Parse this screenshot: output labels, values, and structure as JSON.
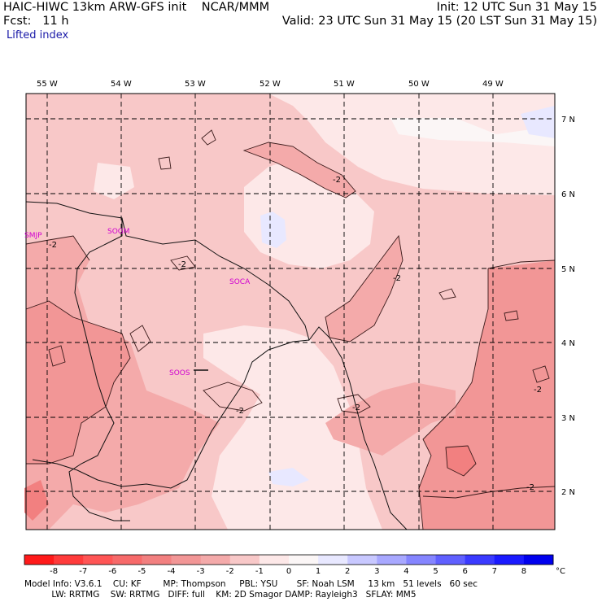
{
  "header": {
    "model": "HAIC-HIWC 13km ARW-GFS init",
    "org": "NCAR/MMM",
    "init": "Init: 12 UTC Sun 31 May 15",
    "fcst_label": "Fcst:",
    "fcst_value": "11 h",
    "valid": "Valid: 23 UTC Sun 31 May 15 (20 LST Sun 31 May 15)",
    "field": "Lifted index"
  },
  "longitudes": [
    "55 W",
    "54 W",
    "53 W",
    "52 W",
    "51 W",
    "50 W",
    "49 W"
  ],
  "latitudes": [
    "7 N",
    "6 N",
    "5 N",
    "4 N",
    "3 N",
    "2 N"
  ],
  "stations": [
    "SMJP",
    "SOGM",
    "SOCA",
    "SOOS"
  ],
  "contour_label": "-2",
  "colorbar": {
    "ticks": [
      "-8",
      "-7",
      "-6",
      "-5",
      "-4",
      "-3",
      "-2",
      "-1",
      "0",
      "1",
      "2",
      "3",
      "4",
      "5",
      "6",
      "7",
      "8"
    ],
    "unit": "°C",
    "colors": [
      "#ff1a1a",
      "#ff3b3b",
      "#ff5555",
      "#f76a6a",
      "#f28080",
      "#f29696",
      "#f4aaaa",
      "#f8c8c8",
      "#fde8e8",
      "#fbf6f6",
      "#e8e8ff",
      "#c8c8ff",
      "#a8a8ff",
      "#8585ff",
      "#6060ff",
      "#3a3aff",
      "#1a1aff",
      "#0000ee"
    ]
  },
  "footer": {
    "line1": "Model Info: V3.6.1    CU: KF        MP: Thompson     PBL: YSU       SF: Noah LSM     13 km   51 levels   60 sec",
    "line2": "          LW: RRTMG    SW: RRTMG   DIFF: full    KM: 2D Smagor DAMP: Rayleigh3   SFLAY: MM5"
  }
}
